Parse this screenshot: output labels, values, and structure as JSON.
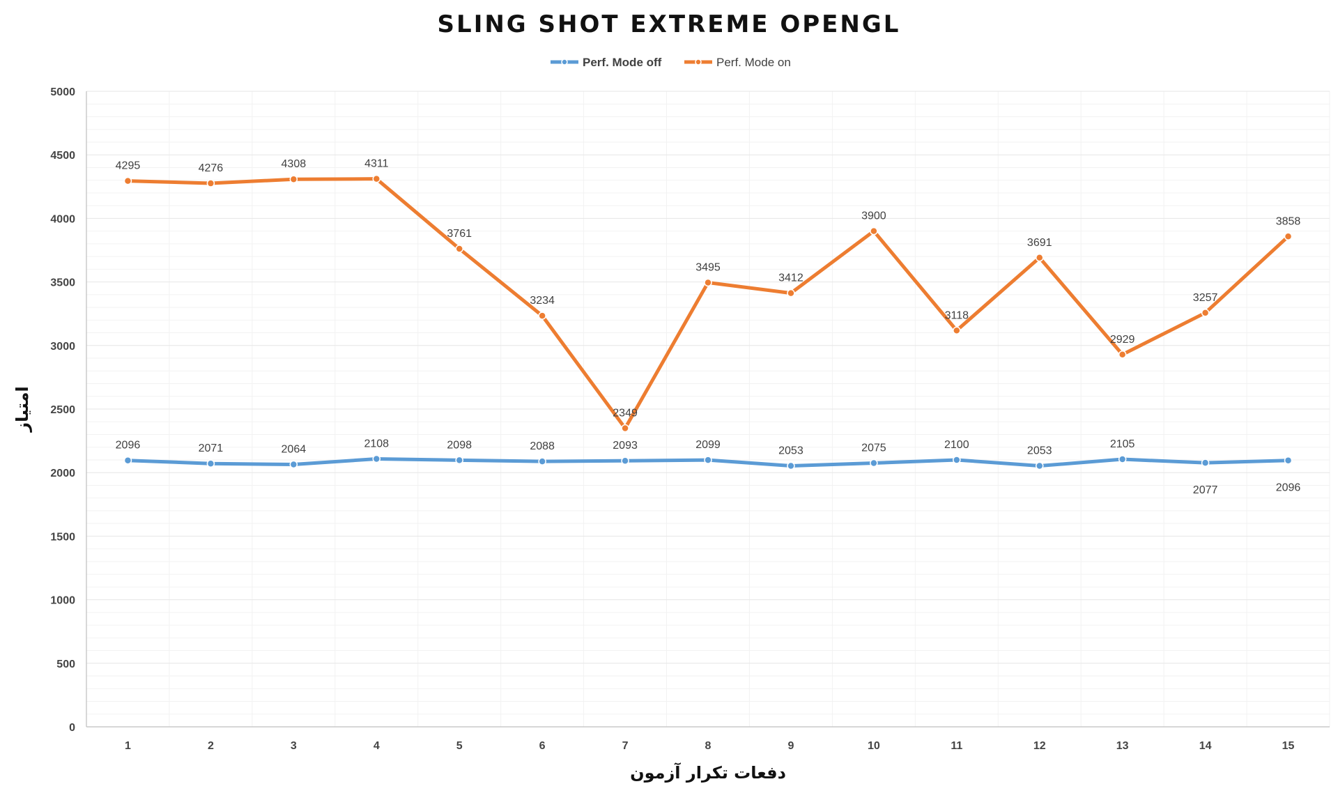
{
  "chart_data": {
    "type": "line",
    "title": "SLING SHOT EXTREME OPENGL",
    "xlabel": "دفعات تکرار آزمون",
    "ylabel": "امتیاز",
    "categories": [
      "1",
      "2",
      "3",
      "4",
      "5",
      "6",
      "7",
      "8",
      "9",
      "10",
      "11",
      "12",
      "13",
      "14",
      "15"
    ],
    "ylim": [
      0,
      5000
    ],
    "yticks": [
      "0",
      "500",
      "1000",
      "1500",
      "2000",
      "2500",
      "3000",
      "3500",
      "4000",
      "4500",
      "5000"
    ],
    "grid": true,
    "legend_position": "top-center",
    "series": [
      {
        "name": "Perf. Mode off",
        "color": "#5b9bd5",
        "values": [
          2096,
          2071,
          2064,
          2108,
          2098,
          2088,
          2093,
          2099,
          2053,
          2075,
          2100,
          2053,
          2105,
          2077,
          2096
        ],
        "label_below": [
          false,
          false,
          false,
          false,
          false,
          false,
          false,
          false,
          false,
          false,
          false,
          false,
          false,
          true,
          true
        ]
      },
      {
        "name": "Perf. Mode on",
        "color": "#ed7d31",
        "values": [
          4295,
          4276,
          4308,
          4311,
          3761,
          3234,
          2349,
          3495,
          3412,
          3900,
          3118,
          3691,
          2929,
          3257,
          3858
        ],
        "label_below": [
          false,
          false,
          false,
          false,
          false,
          false,
          false,
          false,
          false,
          false,
          false,
          false,
          false,
          false,
          false
        ]
      }
    ]
  }
}
